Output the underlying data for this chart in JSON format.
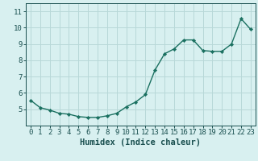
{
  "x": [
    0,
    1,
    2,
    3,
    4,
    5,
    6,
    7,
    8,
    9,
    10,
    11,
    12,
    13,
    14,
    15,
    16,
    17,
    18,
    19,
    20,
    21,
    22,
    23
  ],
  "y": [
    5.55,
    5.1,
    4.95,
    4.75,
    4.7,
    4.55,
    4.5,
    4.5,
    4.6,
    4.75,
    5.15,
    5.45,
    5.9,
    7.4,
    8.4,
    8.7,
    9.25,
    9.25,
    8.6,
    8.55,
    8.55,
    9.0,
    10.55,
    9.9
  ],
  "line_color": "#1a7060",
  "marker": "D",
  "markersize": 2.2,
  "bg_color": "#d8f0f0",
  "grid_color": "#b8d8d8",
  "xlabel": "Humidex (Indice chaleur)",
  "xlim": [
    -0.5,
    23.5
  ],
  "ylim": [
    4.0,
    11.5
  ],
  "yticks": [
    5,
    6,
    7,
    8,
    9,
    10,
    11
  ],
  "xticks": [
    0,
    1,
    2,
    3,
    4,
    5,
    6,
    7,
    8,
    9,
    10,
    11,
    12,
    13,
    14,
    15,
    16,
    17,
    18,
    19,
    20,
    21,
    22,
    23
  ],
  "font_color": "#1a5050",
  "tick_fontsize": 6.5,
  "label_fontsize": 7.5,
  "linewidth": 1.0
}
